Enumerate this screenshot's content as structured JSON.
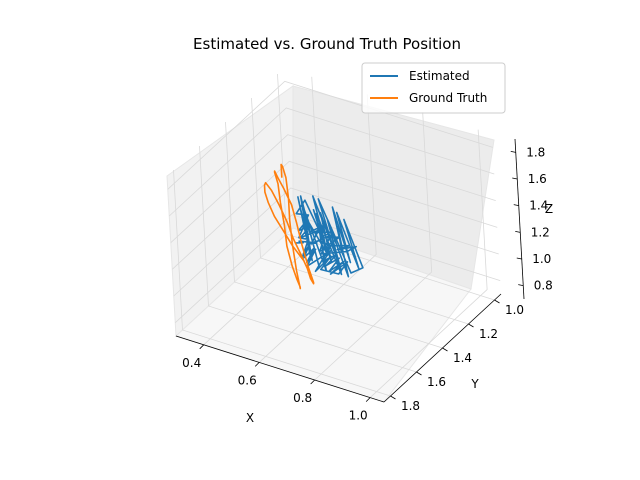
{
  "chart_data": {
    "type": "line3d",
    "title": "Estimated vs. Ground Truth Position",
    "xlabel": "X",
    "ylabel": "Y",
    "zlabel": "Z",
    "x_ticks": [
      "0.4",
      "0.6",
      "0.8",
      "1.0"
    ],
    "y_ticks": [
      "1.0",
      "1.2",
      "1.4",
      "1.6",
      "1.8"
    ],
    "z_ticks": [
      "0.8",
      "1.0",
      "1.2",
      "1.4",
      "1.6",
      "1.8"
    ],
    "xlim": [
      0.3,
      1.05
    ],
    "ylim": [
      0.95,
      1.85
    ],
    "zlim": [
      0.7,
      1.9
    ],
    "grid": true,
    "legend": "top-right",
    "colors": {
      "estimated": "#1f77b4",
      "ground_truth": "#ff7f0e"
    },
    "series": [
      {
        "name": "Estimated",
        "color": "#1f77b4",
        "x": [
          0.39,
          0.46,
          0.42,
          0.55,
          0.49,
          0.61,
          0.57,
          0.68,
          0.63,
          0.72,
          0.66,
          0.78,
          0.71,
          0.83,
          0.76,
          0.88,
          0.8,
          0.92,
          0.85,
          0.74,
          0.81,
          0.69,
          0.77,
          0.62,
          0.7,
          0.58,
          0.66,
          0.53,
          0.61,
          0.49,
          0.57,
          0.45,
          0.54,
          0.43,
          0.52,
          0.64,
          0.57,
          0.71,
          0.63,
          0.79,
          0.72,
          0.86,
          0.78,
          0.93,
          0.84,
          0.97,
          0.88,
          0.76,
          0.83,
          0.68,
          0.75,
          0.6,
          0.69,
          0.55,
          0.63,
          0.5,
          0.59,
          0.48,
          0.56,
          0.67,
          0.6,
          0.74,
          0.66,
          0.81,
          0.73,
          0.89,
          0.8,
          0.94,
          0.86,
          0.72,
          0.79,
          0.64,
          0.71,
          0.56,
          0.65,
          0.51,
          0.6,
          0.7,
          0.62,
          0.76,
          0.68,
          0.84,
          0.75,
          0.9,
          0.82
        ],
        "y": [
          1.12,
          1.2,
          1.15,
          1.28,
          1.22,
          1.35,
          1.3,
          1.44,
          1.38,
          1.52,
          1.46,
          1.6,
          1.54,
          1.68,
          1.62,
          1.75,
          1.69,
          1.8,
          1.73,
          1.64,
          1.7,
          1.58,
          1.66,
          1.5,
          1.59,
          1.42,
          1.52,
          1.34,
          1.45,
          1.27,
          1.38,
          1.21,
          1.31,
          1.18,
          1.29,
          1.4,
          1.33,
          1.48,
          1.41,
          1.57,
          1.49,
          1.66,
          1.58,
          1.74,
          1.65,
          1.79,
          1.7,
          1.61,
          1.67,
          1.53,
          1.62,
          1.46,
          1.55,
          1.37,
          1.48,
          1.3,
          1.41,
          1.24,
          1.35,
          1.45,
          1.39,
          1.55,
          1.47,
          1.63,
          1.56,
          1.72,
          1.63,
          1.77,
          1.68,
          1.59,
          1.65,
          1.5,
          1.58,
          1.42,
          1.52,
          1.33,
          1.44,
          1.51,
          1.43,
          1.6,
          1.5,
          1.69,
          1.59,
          1.76,
          1.66
        ],
        "z": [
          0.8,
          0.92,
          0.86,
          1.05,
          0.95,
          1.18,
          1.02,
          1.25,
          1.1,
          1.32,
          1.15,
          1.4,
          1.22,
          1.48,
          1.28,
          1.55,
          1.35,
          1.62,
          1.42,
          1.3,
          1.5,
          1.2,
          1.45,
          1.12,
          1.38,
          1.05,
          1.3,
          0.98,
          1.24,
          0.9,
          1.18,
          0.96,
          1.28,
          1.1,
          1.36,
          1.22,
          1.46,
          1.3,
          1.55,
          1.38,
          1.62,
          1.45,
          1.7,
          1.52,
          1.75,
          1.6,
          1.42,
          1.66,
          1.35,
          1.58,
          1.28,
          1.5,
          1.2,
          1.44,
          1.15,
          1.38,
          1.08,
          1.32,
          1.2,
          1.42,
          1.26,
          1.5,
          1.33,
          1.58,
          1.4,
          1.65,
          1.48,
          1.72,
          1.55,
          1.36,
          1.6,
          1.3,
          1.52,
          1.22,
          1.46,
          1.16,
          1.4,
          1.28,
          1.48,
          1.34,
          1.56,
          1.4,
          1.63,
          1.46,
          1.7
        ]
      },
      {
        "name": "Ground Truth",
        "color": "#ff7f0e",
        "x": [
          0.46,
          0.44,
          0.43,
          0.42,
          0.42,
          0.43,
          0.45,
          0.47,
          0.5,
          0.53,
          0.55,
          0.56,
          0.57,
          0.57,
          0.56,
          0.55,
          0.53,
          0.5,
          0.47,
          0.45,
          0.44,
          0.43,
          0.43,
          0.44,
          0.46,
          0.49,
          0.51,
          0.53,
          0.54,
          0.55,
          0.55,
          0.54,
          0.52,
          0.49,
          0.46,
          0.44,
          0.43,
          0.42,
          0.42,
          0.43,
          0.45
        ],
        "y": [
          1.2,
          1.24,
          1.28,
          1.32,
          1.36,
          1.4,
          1.44,
          1.47,
          1.49,
          1.5,
          1.49,
          1.47,
          1.44,
          1.4,
          1.36,
          1.32,
          1.28,
          1.25,
          1.23,
          1.22,
          1.23,
          1.26,
          1.3,
          1.34,
          1.38,
          1.42,
          1.45,
          1.47,
          1.48,
          1.47,
          1.44,
          1.4,
          1.36,
          1.32,
          1.28,
          1.25,
          1.23,
          1.22,
          1.24,
          1.27,
          1.31
        ],
        "z": [
          0.78,
          0.92,
          1.06,
          1.2,
          1.34,
          1.46,
          1.56,
          1.62,
          1.6,
          1.52,
          1.4,
          1.26,
          1.12,
          0.98,
          0.86,
          0.78,
          0.74,
          0.8,
          0.94,
          1.08,
          1.22,
          1.36,
          1.48,
          1.57,
          1.61,
          1.58,
          1.48,
          1.34,
          1.2,
          1.05,
          0.92,
          0.82,
          0.76,
          0.84,
          0.98,
          1.12,
          1.26,
          1.4,
          1.5,
          1.55,
          1.5
        ]
      }
    ]
  }
}
